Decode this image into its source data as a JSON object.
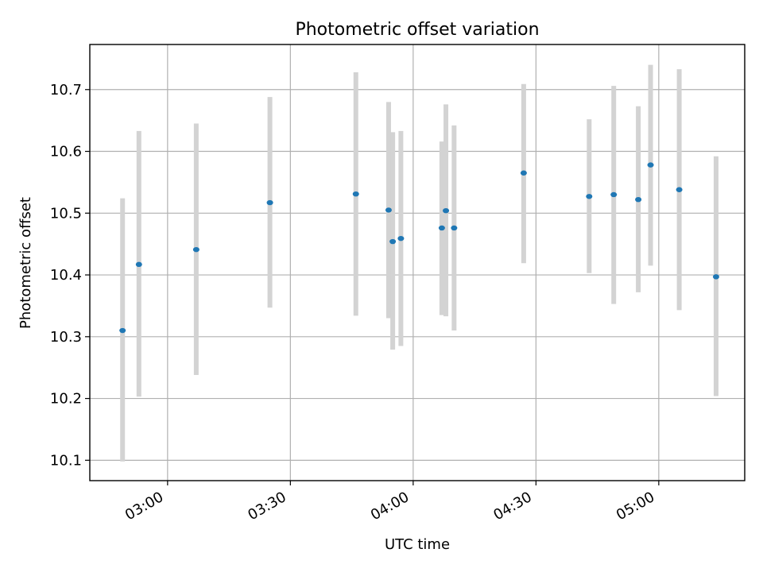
{
  "chart_data": {
    "type": "scatter",
    "title": "Photometric offset variation",
    "xlabel": "UTC time",
    "ylabel": "Photometric offset",
    "x_tick_labels": [
      "03:00",
      "03:30",
      "04:00",
      "04:30",
      "05:00"
    ],
    "y_tick_labels": [
      "10.1",
      "10.2",
      "10.3",
      "10.4",
      "10.5",
      "10.6",
      "10.7"
    ],
    "xlim": [
      "02:41",
      "05:21"
    ],
    "ylim": [
      10.067,
      10.773
    ],
    "grid": true,
    "colors": {
      "points": "#1f77b4",
      "errorbars": "#d3d3d3",
      "grid": "#b0b0b0",
      "axes": "#000000"
    },
    "series": [
      {
        "points": [
          {
            "x": "02:49",
            "y": 10.31,
            "y_low": 10.098,
            "y_high": 10.524
          },
          {
            "x": "02:53",
            "y": 10.417,
            "y_low": 10.203,
            "y_high": 10.633
          },
          {
            "x": "03:07",
            "y": 10.441,
            "y_low": 10.238,
            "y_high": 10.645
          },
          {
            "x": "03:25",
            "y": 10.517,
            "y_low": 10.347,
            "y_high": 10.688
          },
          {
            "x": "03:46",
            "y": 10.531,
            "y_low": 10.334,
            "y_high": 10.728
          },
          {
            "x": "03:54",
            "y": 10.505,
            "y_low": 10.33,
            "y_high": 10.68
          },
          {
            "x": "03:55",
            "y": 10.454,
            "y_low": 10.279,
            "y_high": 10.631
          },
          {
            "x": "03:57",
            "y": 10.459,
            "y_low": 10.285,
            "y_high": 10.633
          },
          {
            "x": "04:07",
            "y": 10.476,
            "y_low": 10.335,
            "y_high": 10.616
          },
          {
            "x": "04:08",
            "y": 10.504,
            "y_low": 10.333,
            "y_high": 10.676
          },
          {
            "x": "04:10",
            "y": 10.476,
            "y_low": 10.31,
            "y_high": 10.642
          },
          {
            "x": "04:27",
            "y": 10.565,
            "y_low": 10.419,
            "y_high": 10.709
          },
          {
            "x": "04:43",
            "y": 10.527,
            "y_low": 10.403,
            "y_high": 10.652
          },
          {
            "x": "04:49",
            "y": 10.53,
            "y_low": 10.353,
            "y_high": 10.706
          },
          {
            "x": "04:55",
            "y": 10.522,
            "y_low": 10.372,
            "y_high": 10.673
          },
          {
            "x": "04:58",
            "y": 10.578,
            "y_low": 10.415,
            "y_high": 10.74
          },
          {
            "x": "05:05",
            "y": 10.538,
            "y_low": 10.343,
            "y_high": 10.733
          },
          {
            "x": "05:14",
            "y": 10.397,
            "y_low": 10.204,
            "y_high": 10.592
          }
        ]
      }
    ]
  }
}
